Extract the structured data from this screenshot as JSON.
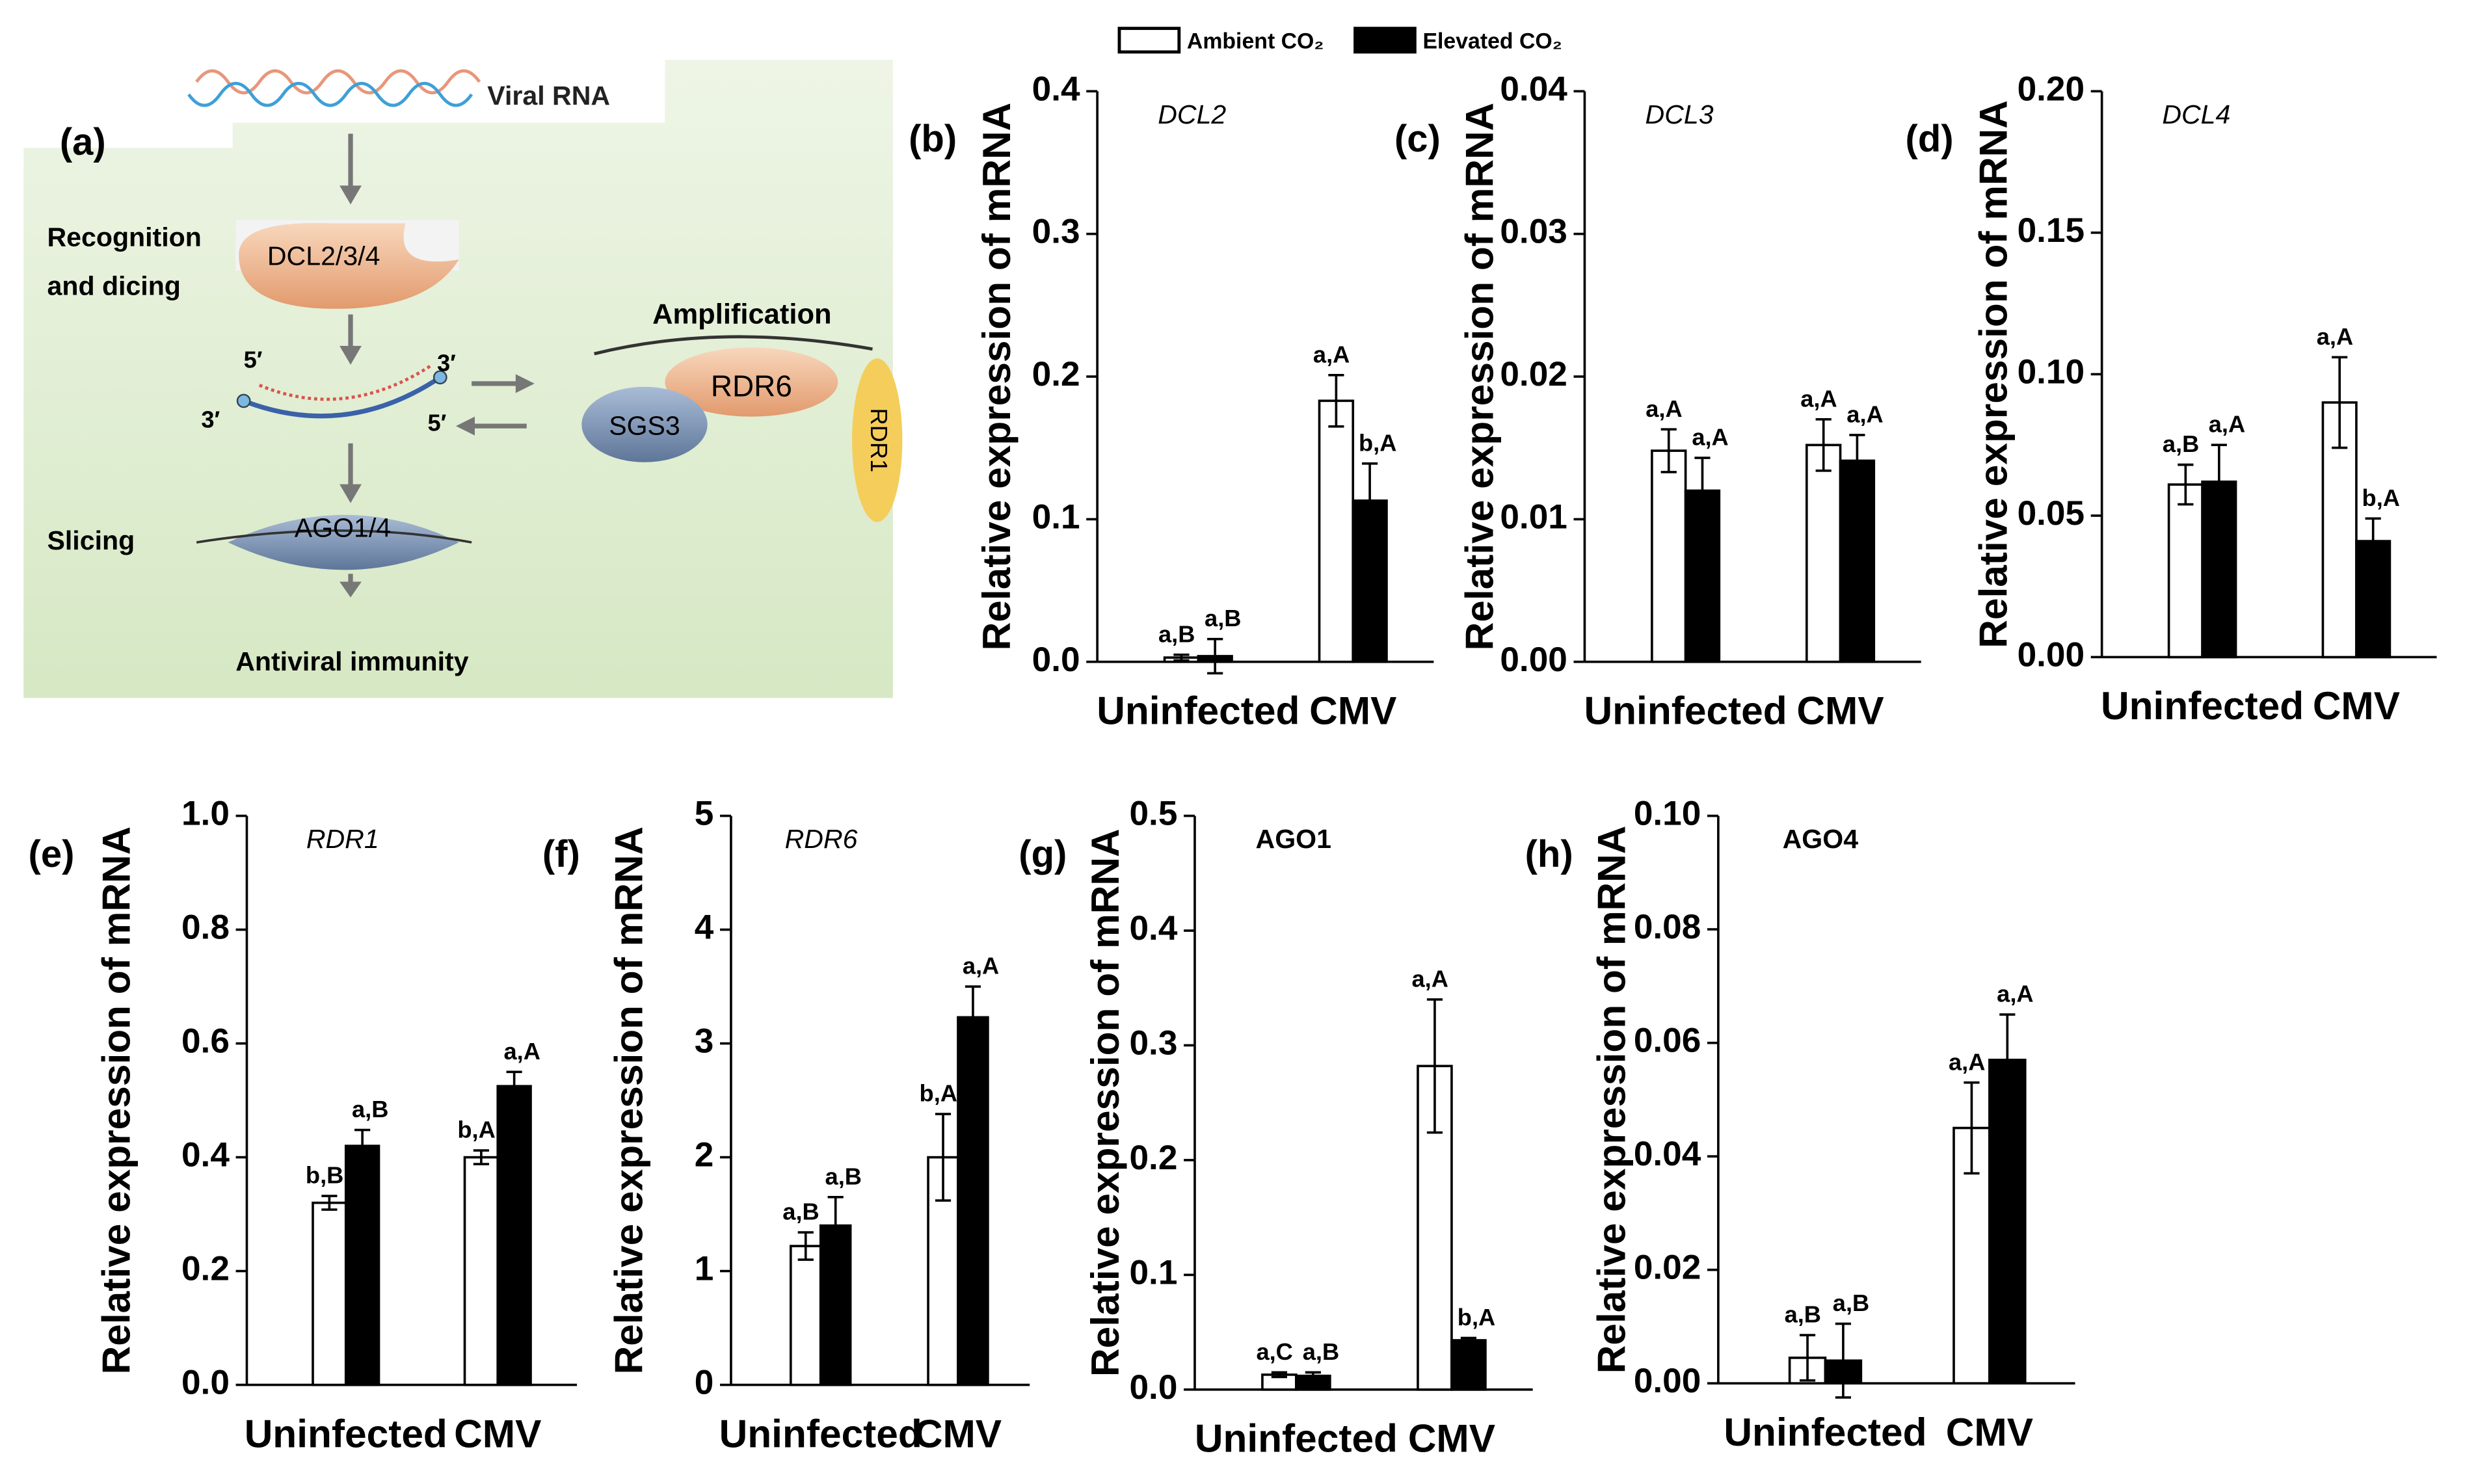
{
  "diagram": {
    "panel": "(a)",
    "viral_rna": "Viral RNA",
    "recognition": [
      "Recognition",
      "and dicing"
    ],
    "dcl": "DCL2/3/4",
    "ends": [
      "5′",
      "3′",
      "3′",
      "5′"
    ],
    "amplification": "Amplification",
    "rdr6": "RDR6",
    "rdr1": "RDR1",
    "sgs3": "SGS3",
    "slicing": "Slicing",
    "ago": "AGO1/4",
    "immunity": "Antiviral immunity"
  },
  "chart_data": [
    {
      "type": "bar",
      "panel": "(b)",
      "title": "DCL2",
      "ylabel": "Relative expression of mRNA",
      "categories": [
        "Uninfected",
        "CMV"
      ],
      "ylim": [
        0,
        0.4
      ],
      "yticks": [
        {
          "value": 0,
          "label": "0.0"
        },
        0.1,
        0.2,
        0.3,
        0.4
      ],
      "series": [
        {
          "name": "Ambient CO₂",
          "color": "#ffffff",
          "values": [
            0.003,
            0.183
          ],
          "errors": [
            0.002,
            0.018
          ],
          "annotations": [
            "a,B",
            "a,A"
          ]
        },
        {
          "name": "Elevated CO₂",
          "color": "#000000",
          "values": [
            0.004,
            0.113
          ],
          "errors": [
            0.012,
            0.026
          ],
          "annotations": [
            "a,B",
            "b,A"
          ]
        }
      ]
    },
    {
      "type": "bar",
      "panel": "(c)",
      "title": "DCL3",
      "ylabel": "Relative expression of mRNA",
      "categories": [
        "Uninfected",
        "CMV"
      ],
      "ylim": [
        0,
        0.04
      ],
      "yticks": [
        {
          "value": 0,
          "label": "0.00"
        },
        0.01,
        0.02,
        0.03,
        0.04
      ],
      "series": [
        {
          "color": "#ffffff",
          "values": [
            0.0148,
            0.0152
          ],
          "errors": [
            0.0015,
            0.0018
          ],
          "annotations": [
            "a,A",
            "a,A"
          ]
        },
        {
          "color": "#000000",
          "values": [
            0.012,
            0.0141
          ],
          "errors": [
            0.0023,
            0.0018
          ],
          "annotations": [
            "a,A",
            "a,A"
          ]
        }
      ]
    },
    {
      "type": "bar",
      "panel": "(d)",
      "title": "DCL4",
      "ylabel": "Relative expression of mRNA",
      "categories": [
        "Uninfected",
        "CMV"
      ],
      "ylim": [
        0,
        0.2
      ],
      "yticks": [
        {
          "value": 0,
          "label": "0.00"
        },
        0.05,
        {
          "value": 0.1,
          "label": "0.10"
        },
        0.15,
        {
          "value": 0.2,
          "label": "0.20"
        }
      ],
      "series": [
        {
          "color": "#ffffff",
          "values": [
            0.061,
            0.09
          ],
          "errors": [
            0.007,
            0.016
          ],
          "annotations": [
            "a,B",
            "a,A"
          ]
        },
        {
          "color": "#000000",
          "values": [
            0.062,
            0.041
          ],
          "errors": [
            0.013,
            0.008
          ],
          "annotations": [
            "a,A",
            "b,A"
          ]
        }
      ]
    },
    {
      "type": "bar",
      "panel": "(e)",
      "title": "RDR1",
      "ylabel": "Relative expression of mRNA",
      "categories": [
        "Uninfected",
        "CMV"
      ],
      "ylim": [
        0,
        1
      ],
      "yticks": [
        {
          "value": 0,
          "label": "0.0"
        },
        0.2,
        0.4,
        0.6,
        0.8,
        {
          "value": 1,
          "label": "1.0"
        }
      ],
      "series": [
        {
          "color": "#ffffff",
          "values": [
            0.32,
            0.4
          ],
          "errors": [
            0.012,
            0.012
          ],
          "annotations": [
            "b,B",
            "b,A"
          ]
        },
        {
          "color": "#000000",
          "values": [
            0.42,
            0.525
          ],
          "errors": [
            0.028,
            0.025
          ],
          "annotations": [
            "a,B",
            "a,A"
          ]
        }
      ]
    },
    {
      "type": "bar",
      "panel": "(f)",
      "title": "RDR6",
      "ylabel": "Relative expression of mRNA",
      "categories": [
        "Uninfected",
        "CMV"
      ],
      "ylim": [
        0,
        5
      ],
      "yticks": [
        0,
        1,
        2,
        3,
        4,
        5
      ],
      "series": [
        {
          "color": "#ffffff",
          "values": [
            1.22,
            2.0
          ],
          "errors": [
            0.12,
            0.38
          ],
          "annotations": [
            "a,B",
            "b,A"
          ]
        },
        {
          "color": "#000000",
          "values": [
            1.4,
            3.23
          ],
          "errors": [
            0.25,
            0.27
          ],
          "annotations": [
            "a,B",
            "a,A"
          ]
        }
      ]
    },
    {
      "type": "bar",
      "panel": "(g)",
      "title": "AGO1",
      "ylabel": "Relative expression of mRNA",
      "categories": [
        "Uninfected",
        "CMV"
      ],
      "ylim": [
        0,
        0.5
      ],
      "yticks": [
        {
          "value": 0,
          "label": "0.0"
        },
        0.1,
        0.2,
        0.3,
        0.4,
        0.5
      ],
      "series": [
        {
          "color": "#ffffff",
          "values": [
            0.013,
            0.282
          ],
          "errors": [
            0.002,
            0.058
          ],
          "annotations": [
            "a,C",
            "a,A"
          ]
        },
        {
          "color": "#000000",
          "values": [
            0.012,
            0.043
          ],
          "errors": [
            0.003,
            0.002
          ],
          "annotations": [
            "a,B",
            "b,A"
          ]
        }
      ]
    },
    {
      "type": "bar",
      "panel": "(h)",
      "title": "AGO4",
      "ylabel": "Relative expression of mRNA",
      "categories": [
        "Uninfected",
        "CMV"
      ],
      "ylim": [
        0,
        0.1
      ],
      "yticks": [
        {
          "value": 0,
          "label": "0.00"
        },
        0.02,
        0.04,
        0.06,
        0.08,
        {
          "value": 0.1,
          "label": "0.10"
        }
      ],
      "series": [
        {
          "color": "#ffffff",
          "values": [
            0.0045,
            0.045
          ],
          "errors": [
            0.004,
            0.008
          ],
          "annotations": [
            "a,B",
            "a,A"
          ]
        },
        {
          "color": "#000000",
          "values": [
            0.004,
            0.057
          ],
          "errors": [
            0.0065,
            0.008
          ],
          "annotations": [
            "a,B",
            "a,A"
          ]
        }
      ]
    }
  ]
}
